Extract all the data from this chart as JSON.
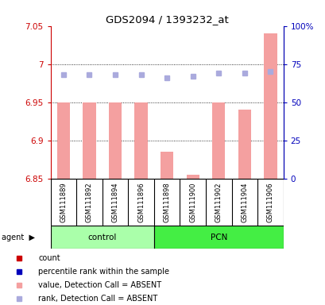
{
  "title": "GDS2094 / 1393232_at",
  "samples": [
    "GSM111889",
    "GSM111892",
    "GSM111894",
    "GSM111896",
    "GSM111898",
    "GSM111900",
    "GSM111902",
    "GSM111904",
    "GSM111906"
  ],
  "groups_control": [
    0,
    1,
    2,
    3
  ],
  "groups_pcn": [
    4,
    5,
    6,
    7,
    8
  ],
  "bar_values": [
    6.95,
    6.95,
    6.95,
    6.95,
    6.885,
    6.855,
    6.95,
    6.94,
    7.04
  ],
  "rank_values": [
    68,
    68,
    68,
    68,
    66,
    67,
    69,
    69,
    70
  ],
  "ylim_left": [
    6.85,
    7.05
  ],
  "ylim_right": [
    0,
    100
  ],
  "yticks_left": [
    6.85,
    6.9,
    6.95,
    7.0,
    7.05
  ],
  "yticks_right": [
    0,
    25,
    50,
    75,
    100
  ],
  "ytick_labels_left": [
    "6.85",
    "6.9",
    "6.95",
    "7",
    "7.05"
  ],
  "ytick_labels_right": [
    "0",
    "25",
    "50",
    "75",
    "100%"
  ],
  "hgrid_lines": [
    6.9,
    6.95,
    7.0
  ],
  "bar_color": "#f4a0a0",
  "dot_color": "#aaaadd",
  "left_color": "#cc0000",
  "right_color": "#0000bb",
  "control_color": "#aaffaa",
  "pcn_color": "#44ee44",
  "label_bg": "#cccccc",
  "bg_color": "#ffffff",
  "legend_colors": [
    "#cc0000",
    "#0000bb",
    "#f4a0a0",
    "#aaaadd"
  ],
  "legend_labels": [
    "count",
    "percentile rank within the sample",
    "value, Detection Call = ABSENT",
    "rank, Detection Call = ABSENT"
  ]
}
